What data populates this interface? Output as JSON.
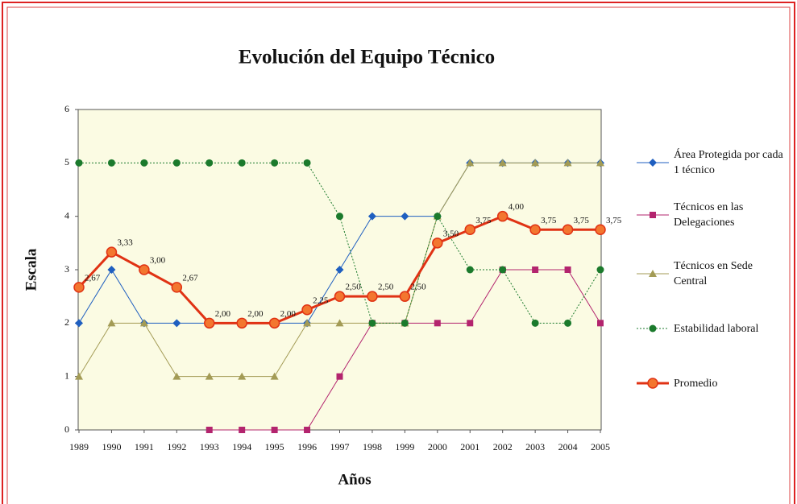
{
  "chart_data": {
    "type": "line",
    "title": "Evolución del Equipo Técnico",
    "xlabel": "Años",
    "ylabel": "Escala",
    "categories": [
      "1989",
      "1990",
      "1991",
      "1992",
      "1993",
      "1994",
      "1995",
      "1996",
      "1997",
      "1998",
      "1999",
      "2000",
      "2001",
      "2002",
      "2003",
      "2004",
      "2005"
    ],
    "ylim": [
      0,
      6
    ],
    "yticks": [
      0,
      1,
      2,
      3,
      4,
      5,
      6
    ],
    "grid": false,
    "legend": "right",
    "series": [
      {
        "name": "Área Protegida por cada 1 técnico",
        "color": "#1f5fc0",
        "marker": "diamond",
        "line_style": "solid",
        "line_width": 1,
        "values": [
          2,
          3,
          2,
          2,
          2,
          2,
          2,
          2,
          3,
          4,
          4,
          4,
          5,
          5,
          5,
          5,
          5
        ]
      },
      {
        "name": "Técnicos en las Delegaciones",
        "color": "#b3246e",
        "marker": "square",
        "line_style": "solid",
        "line_width": 1,
        "values": [
          null,
          null,
          null,
          null,
          0,
          0,
          0,
          0,
          1,
          2,
          2,
          2,
          2,
          3,
          3,
          3,
          2
        ]
      },
      {
        "name": "Técnicos en Sede Central",
        "color": "#a39b55",
        "marker": "triangle",
        "line_style": "solid",
        "line_width": 1,
        "values": [
          1,
          2,
          2,
          1,
          1,
          1,
          1,
          2,
          2,
          2,
          2,
          4,
          5,
          5,
          5,
          5,
          5
        ]
      },
      {
        "name": "Estabilidad laboral",
        "color": "#1b7a2c",
        "marker": "circle",
        "line_style": "dotted",
        "line_width": 1,
        "values": [
          5,
          5,
          5,
          5,
          5,
          5,
          5,
          5,
          4,
          2,
          2,
          4,
          3,
          3,
          2,
          2,
          3
        ]
      },
      {
        "name": "Promedio",
        "color": "#e03214",
        "marker_fill": "#f3762f",
        "marker": "bigcircle",
        "line_style": "solid",
        "line_width": 3,
        "values": [
          2.67,
          3.33,
          3.0,
          2.67,
          2.0,
          2.0,
          2.0,
          2.25,
          2.5,
          2.5,
          2.5,
          3.5,
          3.75,
          4.0,
          3.75,
          3.75,
          3.75
        ],
        "value_labels": [
          "2,67",
          "3,33",
          "3,00",
          "2,67",
          "2,00",
          "2,00",
          "2,00",
          "2,25",
          "2,50",
          "2,50",
          "2,50",
          "3,50",
          "3,75",
          "4,00",
          "3,75",
          "3,75",
          "3,75"
        ]
      }
    ]
  }
}
